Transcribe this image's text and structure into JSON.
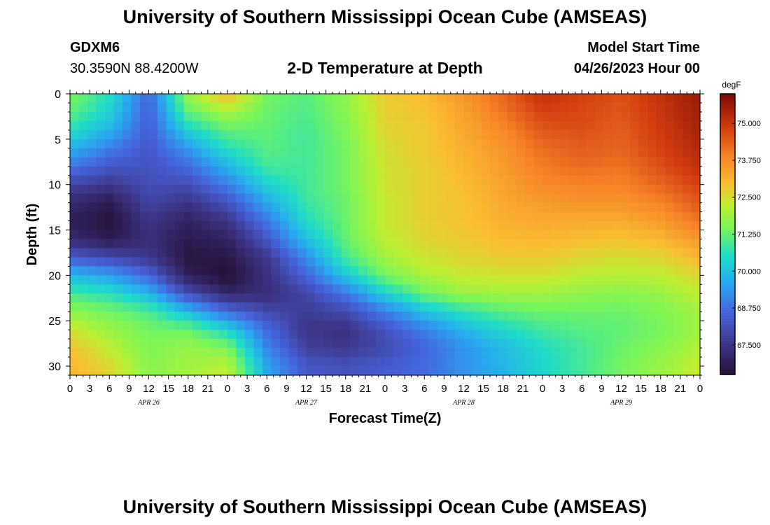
{
  "header": {
    "title": "University of Southern Mississippi Ocean Cube (AMSEAS)",
    "station_id": "GDXM6",
    "coordinates": "30.3590N  88.4200W",
    "plot_title": "2-D Temperature at Depth",
    "model_start_label": "Model Start Time",
    "model_start_value": "04/26/2023 Hour 00"
  },
  "footer": {
    "title": "University of Southern Mississippi Ocean Cube (AMSEAS)"
  },
  "chart_data": {
    "type": "heatmap",
    "title": "2-D Temperature at Depth",
    "xlabel": "Forecast Time(Z)",
    "ylabel": "Depth (ft)",
    "x_hours": [
      0,
      96
    ],
    "x_tick_labels": [
      "0",
      "3",
      "6",
      "9",
      "12",
      "15",
      "18",
      "21",
      "0",
      "3",
      "6",
      "9",
      "12",
      "15",
      "18",
      "21",
      "0",
      "3",
      "6",
      "9",
      "12",
      "15",
      "18",
      "21",
      "0",
      "3",
      "6",
      "9",
      "12",
      "15",
      "18",
      "21",
      "0"
    ],
    "x_day_labels": [
      "APR 26",
      "APR 27",
      "APR 28",
      "APR 29"
    ],
    "y_ticks": [
      0,
      5,
      10,
      15,
      20,
      25,
      30
    ],
    "ylim": [
      31,
      0
    ],
    "colorbar": {
      "unit": "degF",
      "ticks": [
        "75.000",
        "73.750",
        "72.500",
        "71.250",
        "70.000",
        "68.750",
        "67.500"
      ],
      "tick_values": [
        75.0,
        73.75,
        72.5,
        71.25,
        70.0,
        68.75,
        67.5
      ],
      "range": [
        66.5,
        76.0
      ]
    },
    "depths_ft": [
      0,
      2,
      4,
      6,
      8,
      10,
      12,
      14,
      16,
      18,
      20,
      22,
      24,
      26,
      28,
      30
    ],
    "hours": [
      0,
      6,
      12,
      18,
      24,
      30,
      36,
      42,
      48,
      54,
      60,
      66,
      72,
      78,
      84,
      90,
      96
    ],
    "values_degF": [
      [
        71.5,
        70.6,
        68.6,
        71.8,
        73.1,
        71.4,
        71.1,
        71.7,
        72.8,
        73.0,
        73.6,
        74.3,
        75.1,
        74.8,
        74.6,
        75.1,
        75.6
      ],
      [
        71.2,
        70.3,
        68.5,
        71.2,
        72.0,
        71.3,
        71.0,
        71.6,
        72.7,
        72.9,
        73.4,
        74.1,
        74.8,
        74.7,
        74.5,
        75.0,
        75.5
      ],
      [
        70.6,
        69.8,
        68.4,
        70.3,
        71.2,
        71.2,
        70.9,
        71.5,
        72.6,
        72.8,
        73.3,
        73.8,
        74.5,
        74.6,
        74.4,
        74.9,
        75.4
      ],
      [
        69.8,
        69.0,
        68.3,
        69.4,
        70.6,
        71.1,
        70.9,
        71.4,
        72.5,
        72.8,
        73.2,
        73.6,
        74.2,
        74.4,
        74.3,
        74.8,
        75.3
      ],
      [
        68.9,
        68.3,
        68.2,
        68.7,
        69.8,
        70.9,
        70.9,
        71.4,
        72.4,
        72.7,
        73.1,
        73.5,
        74.0,
        74.2,
        74.1,
        74.6,
        75.1
      ],
      [
        67.9,
        67.6,
        68.1,
        68.1,
        69.0,
        70.3,
        70.9,
        71.4,
        72.4,
        72.7,
        73.0,
        73.4,
        73.8,
        73.9,
        73.9,
        74.3,
        74.8
      ],
      [
        67.2,
        66.8,
        67.9,
        67.5,
        68.2,
        69.6,
        70.8,
        71.3,
        72.3,
        72.7,
        72.9,
        73.3,
        73.5,
        73.6,
        73.6,
        73.9,
        74.5
      ],
      [
        66.9,
        66.5,
        67.5,
        67.0,
        67.5,
        68.9,
        70.5,
        71.3,
        72.3,
        72.7,
        72.9,
        73.2,
        73.3,
        73.3,
        73.3,
        73.5,
        74.1
      ],
      [
        67.2,
        66.8,
        67.3,
        66.8,
        67.0,
        68.3,
        70.0,
        71.2,
        72.2,
        72.6,
        72.8,
        73.0,
        73.1,
        73.0,
        72.9,
        73.1,
        73.6
      ],
      [
        68.4,
        68.0,
        67.6,
        66.6,
        66.7,
        67.6,
        69.2,
        70.9,
        71.9,
        72.4,
        72.6,
        72.8,
        72.8,
        72.6,
        72.5,
        72.6,
        73.1
      ],
      [
        69.9,
        69.5,
        68.6,
        66.9,
        66.4,
        67.4,
        68.6,
        70.1,
        71.4,
        72.0,
        72.3,
        72.4,
        72.4,
        72.2,
        72.1,
        72.2,
        72.6
      ],
      [
        70.9,
        70.6,
        69.8,
        68.1,
        67.1,
        67.3,
        67.9,
        68.9,
        70.3,
        71.3,
        71.8,
        71.9,
        71.9,
        71.7,
        71.6,
        71.8,
        72.2
      ],
      [
        71.7,
        71.4,
        71.0,
        69.9,
        68.7,
        68.0,
        67.7,
        68.0,
        69.0,
        70.0,
        70.7,
        71.1,
        71.3,
        71.3,
        71.3,
        71.5,
        71.9
      ],
      [
        72.4,
        71.8,
        71.4,
        71.3,
        70.4,
        68.7,
        67.5,
        67.4,
        68.2,
        69.0,
        69.8,
        70.4,
        70.9,
        71.1,
        71.2,
        71.4,
        71.9
      ],
      [
        72.9,
        72.2,
        71.5,
        71.8,
        71.5,
        69.1,
        67.8,
        67.6,
        68.0,
        68.6,
        69.3,
        69.9,
        70.5,
        70.9,
        71.3,
        71.6,
        72.1
      ],
      [
        73.1,
        72.6,
        71.6,
        71.9,
        72.2,
        69.6,
        68.3,
        68.2,
        68.4,
        68.7,
        69.3,
        69.8,
        70.4,
        70.9,
        71.4,
        71.8,
        72.3
      ]
    ]
  }
}
